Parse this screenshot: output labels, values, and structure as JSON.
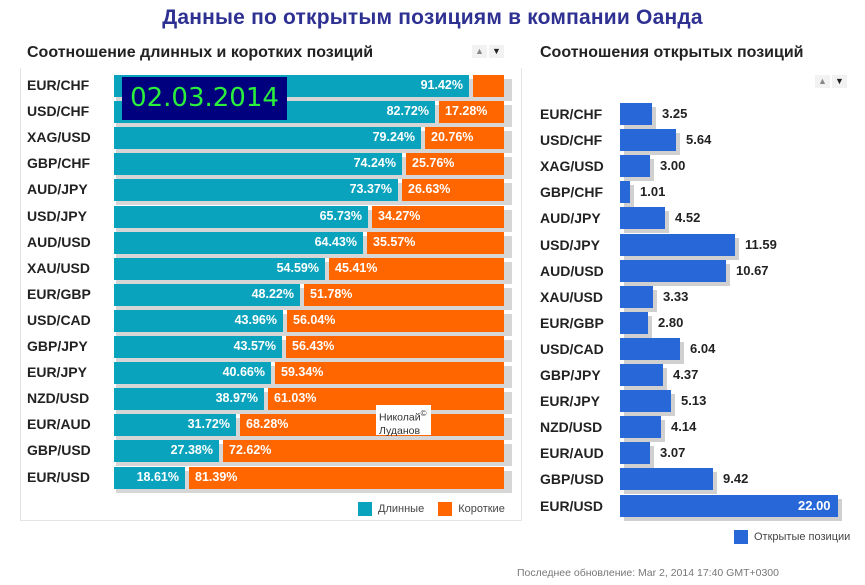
{
  "title": "Данные по открытым позициям в компании Оанда",
  "date_stamp": "02.03.2014",
  "author": {
    "line1": "Николай",
    "line2": "Луданов",
    "mark": "©"
  },
  "sort_controls": {
    "up": "▲",
    "down": "▼"
  },
  "footer": "Последнее обновление: Mar 2, 2014 17:40 GMT+0300",
  "colors": {
    "long": "#0aa3bd",
    "short": "#ff6600",
    "open_positions": "#2767d8",
    "title": "#2e3192"
  },
  "chart_data": [
    {
      "type": "bar",
      "orientation": "horizontal-stacked-100",
      "title": "Соотношение длинных и коротких позиций",
      "categories": [
        "EUR/CHF",
        "USD/CHF",
        "XAG/USD",
        "GBP/CHF",
        "AUD/JPY",
        "USD/JPY",
        "AUD/USD",
        "XAU/USD",
        "EUR/GBP",
        "USD/CAD",
        "GBP/JPY",
        "EUR/JPY",
        "NZD/USD",
        "EUR/AUD",
        "GBP/USD",
        "EUR/USD"
      ],
      "series": [
        {
          "name": "Длинные",
          "values": [
            91.42,
            82.72,
            79.24,
            74.24,
            73.37,
            65.73,
            64.43,
            54.59,
            48.22,
            43.96,
            43.57,
            40.66,
            38.97,
            31.72,
            27.38,
            18.61
          ],
          "labels": [
            "91.42%",
            "82.72%",
            "79.24%",
            "74.24%",
            "73.37%",
            "65.73%",
            "64.43%",
            "54.59%",
            "48.22%",
            "43.96%",
            "43.57%",
            "40.66%",
            "38.97%",
            "31.72%",
            "27.38%",
            "18.61%"
          ]
        },
        {
          "name": "Короткие",
          "values": [
            8.58,
            17.28,
            20.76,
            25.76,
            26.63,
            34.27,
            35.57,
            45.41,
            51.78,
            56.04,
            56.43,
            59.34,
            61.03,
            68.28,
            72.62,
            81.39
          ],
          "labels": [
            "",
            "17.28%",
            "20.76%",
            "25.76%",
            "26.63%",
            "34.27%",
            "35.57%",
            "45.41%",
            "51.78%",
            "56.04%",
            "56.43%",
            "59.34%",
            "61.03%",
            "68.28%",
            "72.62%",
            "81.39%"
          ]
        }
      ],
      "xlim": [
        0,
        100
      ],
      "legend": "bottom-right"
    },
    {
      "type": "bar",
      "orientation": "horizontal",
      "title": "Соотношения открытых позиций",
      "categories": [
        "EUR/CHF",
        "USD/CHF",
        "XAG/USD",
        "GBP/CHF",
        "AUD/JPY",
        "USD/JPY",
        "AUD/USD",
        "XAU/USD",
        "EUR/GBP",
        "USD/CAD",
        "GBP/JPY",
        "EUR/JPY",
        "NZD/USD",
        "EUR/AUD",
        "GBP/USD",
        "EUR/USD"
      ],
      "series": [
        {
          "name": "Открытые позиции",
          "values": [
            3.25,
            5.64,
            3.0,
            1.01,
            4.52,
            11.59,
            10.67,
            3.33,
            2.8,
            6.04,
            4.37,
            5.13,
            4.14,
            3.07,
            9.42,
            22.0
          ],
          "labels": [
            "3.25",
            "5.64",
            "3.00",
            "1.01",
            "4.52",
            "11.59",
            "10.67",
            "3.33",
            "2.80",
            "6.04",
            "4.37",
            "5.13",
            "4.14",
            "3.07",
            "9.42",
            "22.00"
          ]
        }
      ],
      "xlim": [
        0,
        22
      ],
      "legend": "bottom-right"
    }
  ]
}
